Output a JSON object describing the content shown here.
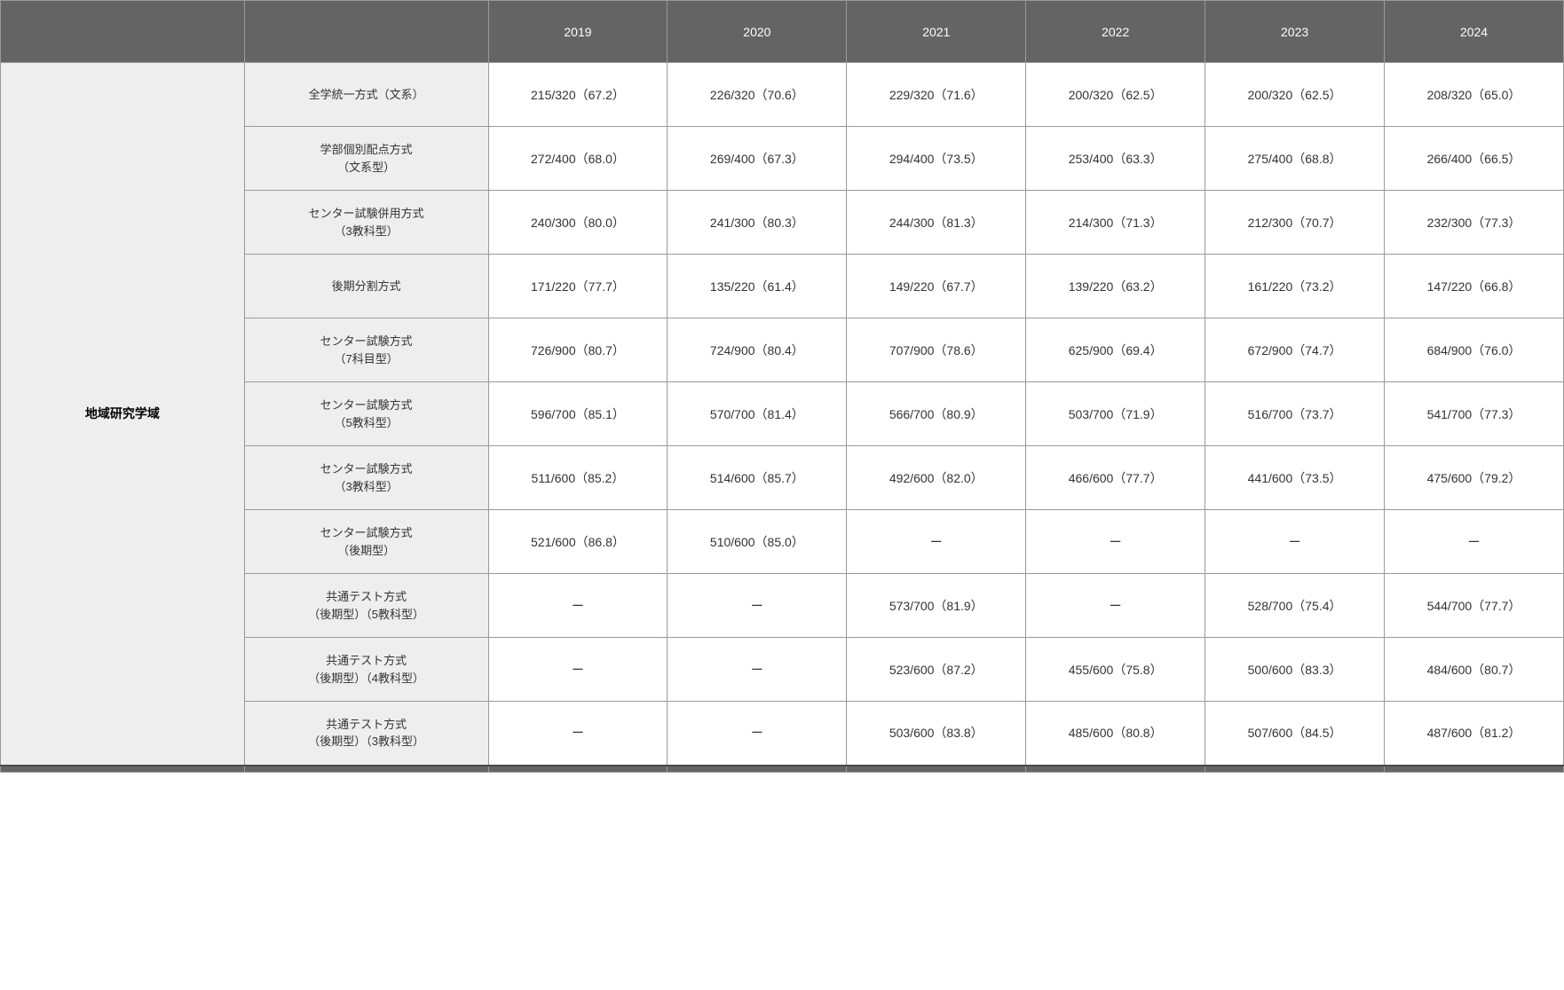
{
  "table": {
    "header": {
      "blank1": "",
      "blank2": "",
      "years": [
        "2019",
        "2020",
        "2021",
        "2022",
        "2023",
        "2024"
      ]
    },
    "category": "地域研究学域",
    "rows": [
      {
        "method": "全学統一方式（文系）",
        "values": [
          "215/320（67.2）",
          "226/320（70.6）",
          "229/320（71.6）",
          "200/320（62.5）",
          "200/320（62.5）",
          "208/320（65.0）"
        ]
      },
      {
        "method": "学部個別配点方式\n（文系型）",
        "values": [
          "272/400（68.0）",
          "269/400（67.3）",
          "294/400（73.5）",
          "253/400（63.3）",
          "275/400（68.8）",
          "266/400（66.5）"
        ]
      },
      {
        "method": "センター試験併用方式\n（3教科型）",
        "values": [
          "240/300（80.0）",
          "241/300（80.3）",
          "244/300（81.3）",
          "214/300（71.3）",
          "212/300（70.7）",
          "232/300（77.3）"
        ]
      },
      {
        "method": "後期分割方式",
        "values": [
          "171/220（77.7）",
          "135/220（61.4）",
          "149/220（67.7）",
          "139/220（63.2）",
          "161/220（73.2）",
          "147/220（66.8）"
        ]
      },
      {
        "method": "センター試験方式\n（7科目型）",
        "values": [
          "726/900（80.7）",
          "724/900（80.4）",
          "707/900（78.6）",
          "625/900（69.4）",
          "672/900（74.7）",
          "684/900（76.0）"
        ]
      },
      {
        "method": "センター試験方式\n（5教科型）",
        "values": [
          "596/700（85.1）",
          "570/700（81.4）",
          "566/700（80.9）",
          "503/700（71.9）",
          "516/700（73.7）",
          "541/700（77.3）"
        ]
      },
      {
        "method": "センター試験方式\n（3教科型）",
        "values": [
          "511/600（85.2）",
          "514/600（85.7）",
          "492/600（82.0）",
          "466/600（77.7）",
          "441/600（73.5）",
          "475/600（79.2）"
        ]
      },
      {
        "method": "センター試験方式\n（後期型）",
        "values": [
          "521/600（86.8）",
          "510/600（85.0）",
          "ー",
          "ー",
          "ー",
          "ー"
        ]
      },
      {
        "method": "共通テスト方式\n（後期型）（5教科型）",
        "values": [
          "ー",
          "ー",
          "573/700（81.9）",
          "ー",
          "528/700（75.4）",
          "544/700（77.7）"
        ]
      },
      {
        "method": "共通テスト方式\n（後期型）（4教科型）",
        "values": [
          "ー",
          "ー",
          "523/600（87.2）",
          "455/600（75.8）",
          "500/600（83.3）",
          "484/600（80.7）"
        ]
      },
      {
        "method": "共通テスト方式\n（後期型）（3教科型）",
        "values": [
          "ー",
          "ー",
          "503/600（83.8）",
          "485/600（80.8）",
          "507/600（84.5）",
          "487/600（81.2）"
        ]
      }
    ]
  },
  "styles": {
    "header_bg": "#646464",
    "header_text": "#ffffff",
    "method_bg": "#eeeeee",
    "value_bg": "#ffffff",
    "border_color": "#9a9a9a",
    "text_color": "#333333"
  }
}
